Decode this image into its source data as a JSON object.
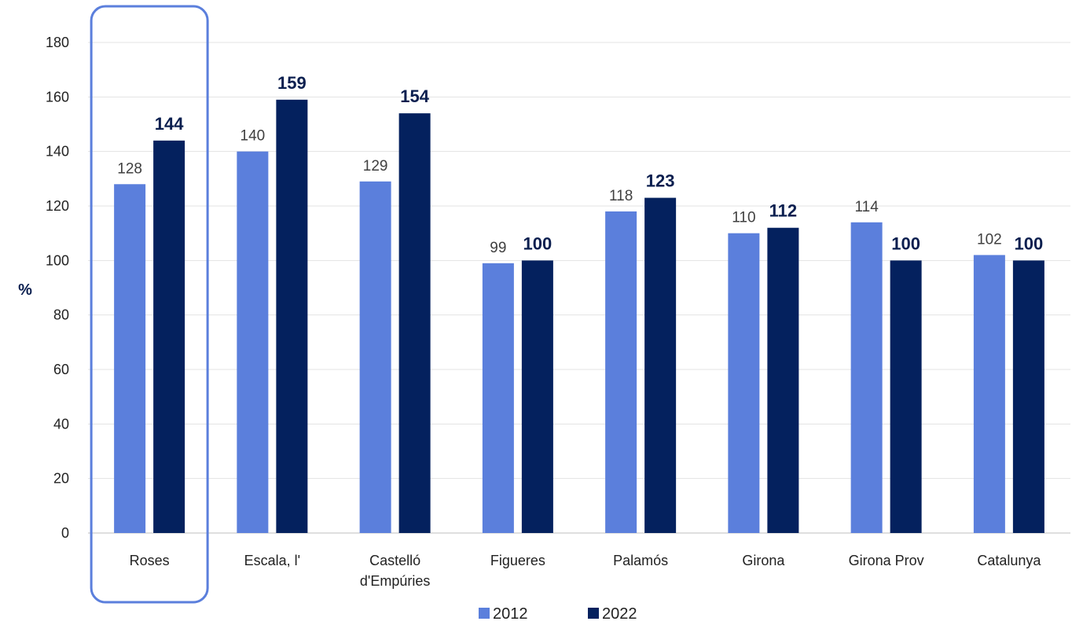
{
  "chart_data": {
    "type": "bar",
    "ylabel": "%",
    "ylim": [
      0,
      180
    ],
    "yticks": [
      0,
      20,
      40,
      60,
      80,
      100,
      120,
      140,
      160,
      180
    ],
    "grid": true,
    "legend_position": "bottom",
    "categories": [
      "Roses",
      "Escala, l'",
      "Castelló d'Empúries",
      "Figueres",
      "Palamós",
      "Girona",
      "Girona Prov",
      "Catalunya"
    ],
    "category_lines": [
      [
        "Roses"
      ],
      [
        "Escala, l'"
      ],
      [
        "Castelló",
        "d'Empúries"
      ],
      [
        "Figueres"
      ],
      [
        "Palamós"
      ],
      [
        "Girona"
      ],
      [
        "Girona Prov"
      ],
      [
        "Catalunya"
      ]
    ],
    "series": [
      {
        "name": "2012",
        "values": [
          128,
          140,
          129,
          99,
          118,
          110,
          114,
          102
        ],
        "color": "#5b7fdc"
      },
      {
        "name": "2022",
        "values": [
          144,
          159,
          154,
          100,
          123,
          112,
          100,
          100
        ],
        "color": "#04215e"
      }
    ],
    "highlight_category": "Roses",
    "highlight_color": "#5b7fdc"
  }
}
